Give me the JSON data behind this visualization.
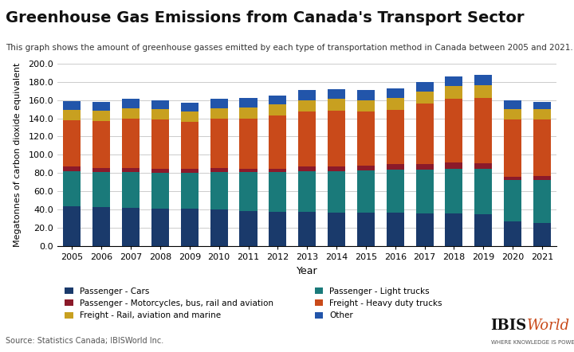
{
  "title": "Greenhouse Gas Emissions from Canada's Transport Sector",
  "subtitle": "This graph shows the amount of greenhouse gasses emitted by each type of transportation method in Canada between 2005 and 2021.",
  "xlabel": "Year",
  "ylabel": "Megatonnes of carbon dioxide equivalent",
  "source": "Source: Statistics Canada; IBISWorld Inc.",
  "years": [
    2005,
    2006,
    2007,
    2008,
    2009,
    2010,
    2011,
    2012,
    2013,
    2014,
    2015,
    2016,
    2017,
    2018,
    2019,
    2020,
    2021
  ],
  "series": {
    "Passenger - Cars": [
      44,
      43,
      42,
      41,
      41,
      40,
      39,
      38,
      38,
      37,
      37,
      37,
      36,
      36,
      35,
      27,
      26
    ],
    "Passenger - Light trucks": [
      38,
      38,
      39,
      39,
      39,
      41,
      42,
      43,
      44,
      45,
      46,
      47,
      48,
      49,
      50,
      46,
      47
    ],
    "Passenger - Motorcycles, bus, rail and aviation": [
      5,
      5,
      5,
      5,
      5,
      5,
      4,
      4,
      5,
      5,
      5,
      6,
      6,
      7,
      6,
      3,
      4
    ],
    "Freight - Heavy duty trucks": [
      51,
      51,
      54,
      54,
      51,
      54,
      55,
      58,
      60,
      61,
      59,
      59,
      66,
      69,
      71,
      63,
      62
    ],
    "Freight - Rail, aviation and marine": [
      11,
      11,
      11,
      11,
      11,
      11,
      12,
      12,
      13,
      13,
      13,
      13,
      13,
      14,
      14,
      11,
      11
    ],
    "Other": [
      10,
      10,
      10,
      10,
      10,
      10,
      10,
      10,
      11,
      11,
      11,
      11,
      11,
      11,
      11,
      10,
      8
    ]
  },
  "colors": {
    "Passenger - Cars": "#1a3a6b",
    "Passenger - Light trucks": "#1a7a7a",
    "Passenger - Motorcycles, bus, rail and aviation": "#8b1a2a",
    "Freight - Heavy duty trucks": "#c94a1a",
    "Freight - Rail, aviation and marine": "#c8a020",
    "Other": "#2255aa"
  },
  "ylim": [
    0,
    200
  ],
  "yticks": [
    0,
    20,
    40,
    60,
    80,
    100,
    120,
    140,
    160,
    180,
    200
  ],
  "background_color": "#ffffff",
  "grid_color": "#cccccc"
}
